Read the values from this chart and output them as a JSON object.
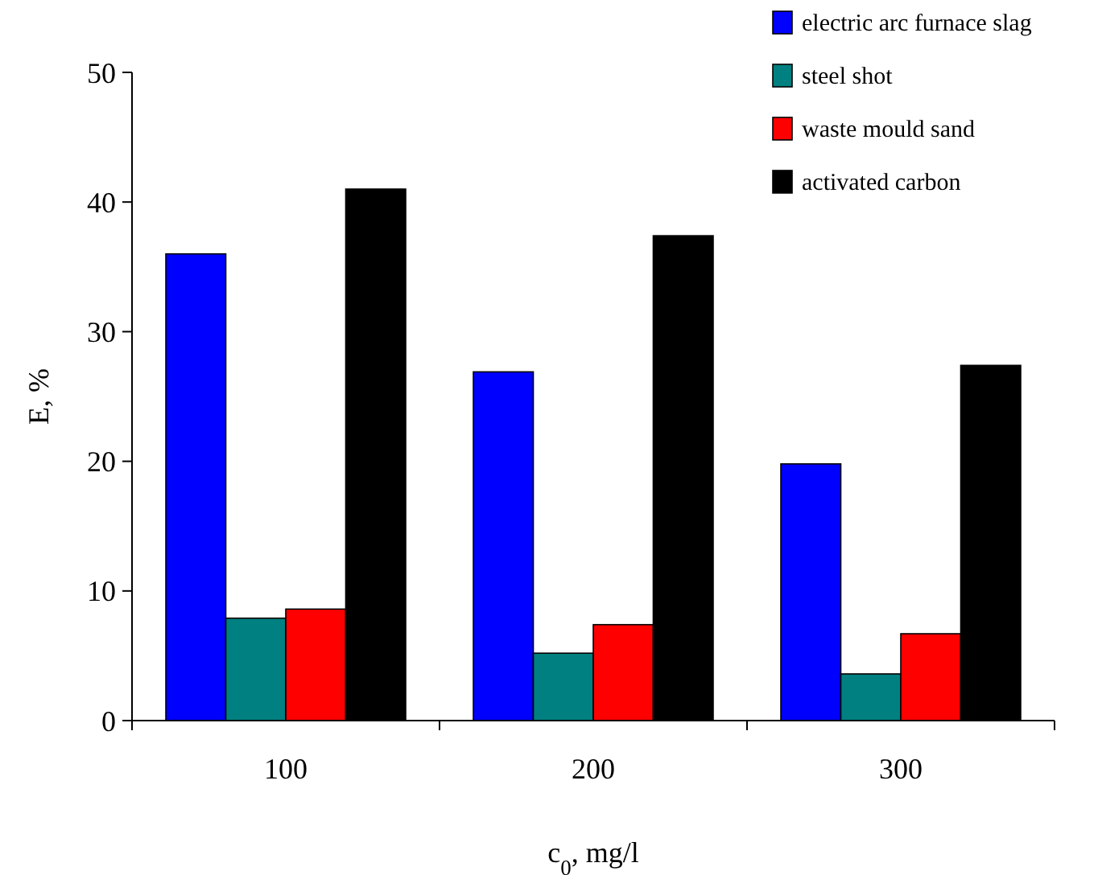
{
  "chart_data": {
    "type": "bar",
    "xlabel": "c$_{0}$, mg/l",
    "ylabel": "E, %",
    "categories": [
      "100",
      "200",
      "300"
    ],
    "series": [
      {
        "name": "electric arc furnace slag",
        "color": "#0000ff",
        "values": [
          36,
          26.9,
          19.8
        ]
      },
      {
        "name": "steel shot",
        "color": "#008080",
        "values": [
          7.9,
          5.2,
          3.6
        ]
      },
      {
        "name": "waste mould sand",
        "color": "#ff0000",
        "values": [
          8.6,
          7.4,
          6.7
        ]
      },
      {
        "name": "activated carbon",
        "color": "#000000",
        "values": [
          41,
          37.4,
          27.4
        ]
      }
    ],
    "ylim": [
      0,
      50
    ],
    "yticks": [
      0,
      10,
      20,
      30,
      40,
      50
    ],
    "grid": false,
    "legend": "top right"
  }
}
